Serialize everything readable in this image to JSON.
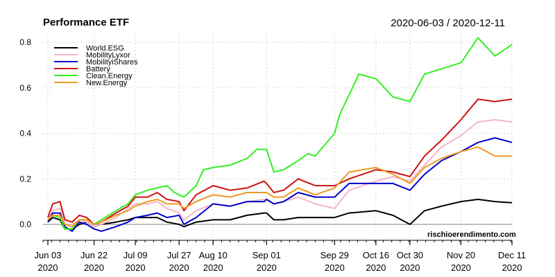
{
  "header": {
    "title": "Performance ETF",
    "date_range": "2020-06-03 / 2020-12-11",
    "watermark": "rischioerendimento.com"
  },
  "chart_data": {
    "type": "line",
    "ylim": [
      -0.07,
      0.84
    ],
    "y_ticks": [
      "0.0",
      "0.2",
      "0.4",
      "0.6",
      "0.8"
    ],
    "y_tick_values": [
      0.0,
      0.2,
      0.4,
      0.6,
      0.8
    ],
    "x_range": [
      "2020-06-01",
      "2020-12-11"
    ],
    "x_ticks": [
      {
        "date": "2020-06-03",
        "label1": "Jun 03",
        "label2": "2020"
      },
      {
        "date": "2020-06-22",
        "label1": "Jun 22",
        "label2": "2020"
      },
      {
        "date": "2020-07-09",
        "label1": "Jul 09",
        "label2": "2020"
      },
      {
        "date": "2020-07-27",
        "label1": "Jul 27",
        "label2": "2020"
      },
      {
        "date": "2020-08-10",
        "label1": "Aug 10",
        "label2": "2020"
      },
      {
        "date": "2020-09-01",
        "label1": "Sep 01",
        "label2": "2020"
      },
      {
        "date": "2020-09-29",
        "label1": "Sep 29",
        "label2": "2020"
      },
      {
        "date": "2020-10-16",
        "label1": "Oct 16",
        "label2": "2020"
      },
      {
        "date": "2020-10-30",
        "label1": "Oct 30",
        "label2": "2020"
      },
      {
        "date": "2020-11-20",
        "label1": "Nov 20",
        "label2": "2020"
      },
      {
        "date": "2020-12-11",
        "label1": "Dec 11",
        "label2": "2020"
      }
    ],
    "grid": true,
    "legend_position": "top-left",
    "series": [
      {
        "name": "World.ESG",
        "color": "#000000",
        "points": [
          [
            "2020-06-03",
            0.01
          ],
          [
            "2020-06-05",
            0.03
          ],
          [
            "2020-06-08",
            0.02
          ],
          [
            "2020-06-10",
            -0.02
          ],
          [
            "2020-06-13",
            -0.02
          ],
          [
            "2020-06-16",
            0.0
          ],
          [
            "2020-06-19",
            0.01
          ],
          [
            "2020-06-22",
            -0.01
          ],
          [
            "2020-06-25",
            0.0
          ],
          [
            "2020-07-01",
            0.01
          ],
          [
            "2020-07-06",
            0.02
          ],
          [
            "2020-07-09",
            0.03
          ],
          [
            "2020-07-14",
            0.03
          ],
          [
            "2020-07-18",
            0.03
          ],
          [
            "2020-07-22",
            0.01
          ],
          [
            "2020-07-27",
            0.0
          ],
          [
            "2020-07-29",
            -0.01
          ],
          [
            "2020-08-03",
            0.01
          ],
          [
            "2020-08-10",
            0.02
          ],
          [
            "2020-08-17",
            0.02
          ],
          [
            "2020-08-24",
            0.04
          ],
          [
            "2020-08-31",
            0.05
          ],
          [
            "2020-09-01",
            0.05
          ],
          [
            "2020-09-04",
            0.02
          ],
          [
            "2020-09-08",
            0.02
          ],
          [
            "2020-09-14",
            0.03
          ],
          [
            "2020-09-21",
            0.03
          ],
          [
            "2020-09-29",
            0.03
          ],
          [
            "2020-10-05",
            0.05
          ],
          [
            "2020-10-16",
            0.06
          ],
          [
            "2020-10-23",
            0.04
          ],
          [
            "2020-10-30",
            0.0
          ],
          [
            "2020-11-05",
            0.06
          ],
          [
            "2020-11-12",
            0.08
          ],
          [
            "2020-11-20",
            0.1
          ],
          [
            "2020-11-27",
            0.11
          ],
          [
            "2020-12-04",
            0.1
          ],
          [
            "2020-12-11",
            0.095
          ]
        ]
      },
      {
        "name": "MobilityLyxor",
        "color": "#f4b6c8",
        "points": [
          [
            "2020-06-03",
            0.02
          ],
          [
            "2020-06-05",
            0.06
          ],
          [
            "2020-06-08",
            0.07
          ],
          [
            "2020-06-10",
            0.0
          ],
          [
            "2020-06-13",
            0.0
          ],
          [
            "2020-06-16",
            0.02
          ],
          [
            "2020-06-19",
            0.01
          ],
          [
            "2020-06-22",
            -0.01
          ],
          [
            "2020-06-25",
            0.0
          ],
          [
            "2020-07-01",
            0.03
          ],
          [
            "2020-07-06",
            0.07
          ],
          [
            "2020-07-09",
            0.09
          ],
          [
            "2020-07-14",
            0.09
          ],
          [
            "2020-07-18",
            0.1
          ],
          [
            "2020-07-22",
            0.07
          ],
          [
            "2020-07-27",
            0.05
          ],
          [
            "2020-07-29",
            0.02
          ],
          [
            "2020-08-03",
            0.06
          ],
          [
            "2020-08-10",
            0.09
          ],
          [
            "2020-08-17",
            0.08
          ],
          [
            "2020-08-24",
            0.1
          ],
          [
            "2020-08-31",
            0.11
          ],
          [
            "2020-09-01",
            0.11
          ],
          [
            "2020-09-04",
            0.09
          ],
          [
            "2020-09-08",
            0.1
          ],
          [
            "2020-09-14",
            0.12
          ],
          [
            "2020-09-21",
            0.09
          ],
          [
            "2020-09-29",
            0.07
          ],
          [
            "2020-10-05",
            0.15
          ],
          [
            "2020-10-16",
            0.19
          ],
          [
            "2020-10-23",
            0.21
          ],
          [
            "2020-10-30",
            0.19
          ],
          [
            "2020-11-05",
            0.26
          ],
          [
            "2020-11-12",
            0.34
          ],
          [
            "2020-11-20",
            0.39
          ],
          [
            "2020-11-27",
            0.45
          ],
          [
            "2020-12-04",
            0.46
          ],
          [
            "2020-12-11",
            0.45
          ]
        ]
      },
      {
        "name": "MobilityiShares",
        "color": "#0000cc",
        "points": [
          [
            "2020-06-03",
            0.01
          ],
          [
            "2020-06-05",
            0.05
          ],
          [
            "2020-06-08",
            0.05
          ],
          [
            "2020-06-10",
            -0.01
          ],
          [
            "2020-06-13",
            -0.03
          ],
          [
            "2020-06-16",
            0.01
          ],
          [
            "2020-06-19",
            0.0
          ],
          [
            "2020-06-22",
            -0.02
          ],
          [
            "2020-06-25",
            -0.03
          ],
          [
            "2020-07-01",
            -0.01
          ],
          [
            "2020-07-06",
            0.01
          ],
          [
            "2020-07-09",
            0.03
          ],
          [
            "2020-07-14",
            0.04
          ],
          [
            "2020-07-18",
            0.05
          ],
          [
            "2020-07-22",
            0.03
          ],
          [
            "2020-07-27",
            0.04
          ],
          [
            "2020-07-29",
            0.0
          ],
          [
            "2020-08-03",
            0.03
          ],
          [
            "2020-08-10",
            0.09
          ],
          [
            "2020-08-17",
            0.08
          ],
          [
            "2020-08-24",
            0.1
          ],
          [
            "2020-08-31",
            0.1
          ],
          [
            "2020-09-01",
            0.11
          ],
          [
            "2020-09-04",
            0.09
          ],
          [
            "2020-09-08",
            0.1
          ],
          [
            "2020-09-14",
            0.14
          ],
          [
            "2020-09-21",
            0.12
          ],
          [
            "2020-09-29",
            0.12
          ],
          [
            "2020-10-05",
            0.18
          ],
          [
            "2020-10-16",
            0.18
          ],
          [
            "2020-10-23",
            0.18
          ],
          [
            "2020-10-30",
            0.15
          ],
          [
            "2020-11-05",
            0.22
          ],
          [
            "2020-11-12",
            0.28
          ],
          [
            "2020-11-20",
            0.32
          ],
          [
            "2020-11-27",
            0.36
          ],
          [
            "2020-12-04",
            0.38
          ],
          [
            "2020-12-11",
            0.36
          ]
        ]
      },
      {
        "name": "Battery",
        "color": "#cc1111",
        "points": [
          [
            "2020-06-03",
            0.03
          ],
          [
            "2020-06-05",
            0.09
          ],
          [
            "2020-06-08",
            0.1
          ],
          [
            "2020-06-10",
            0.02
          ],
          [
            "2020-06-13",
            0.01
          ],
          [
            "2020-06-16",
            0.04
          ],
          [
            "2020-06-19",
            0.03
          ],
          [
            "2020-06-22",
            0.0
          ],
          [
            "2020-06-25",
            0.01
          ],
          [
            "2020-07-01",
            0.05
          ],
          [
            "2020-07-06",
            0.08
          ],
          [
            "2020-07-09",
            0.12
          ],
          [
            "2020-07-14",
            0.12
          ],
          [
            "2020-07-18",
            0.14
          ],
          [
            "2020-07-22",
            0.11
          ],
          [
            "2020-07-27",
            0.1
          ],
          [
            "2020-07-29",
            0.06
          ],
          [
            "2020-08-03",
            0.13
          ],
          [
            "2020-08-10",
            0.17
          ],
          [
            "2020-08-17",
            0.15
          ],
          [
            "2020-08-24",
            0.16
          ],
          [
            "2020-08-31",
            0.19
          ],
          [
            "2020-09-01",
            0.18
          ],
          [
            "2020-09-04",
            0.14
          ],
          [
            "2020-09-08",
            0.15
          ],
          [
            "2020-09-14",
            0.2
          ],
          [
            "2020-09-21",
            0.17
          ],
          [
            "2020-09-29",
            0.17
          ],
          [
            "2020-10-05",
            0.2
          ],
          [
            "2020-10-16",
            0.24
          ],
          [
            "2020-10-23",
            0.23
          ],
          [
            "2020-10-30",
            0.21
          ],
          [
            "2020-11-05",
            0.3
          ],
          [
            "2020-11-12",
            0.37
          ],
          [
            "2020-11-20",
            0.46
          ],
          [
            "2020-11-27",
            0.55
          ],
          [
            "2020-12-04",
            0.54
          ],
          [
            "2020-12-11",
            0.55
          ]
        ]
      },
      {
        "name": "Clean.Energy",
        "color": "#33ee22",
        "points": [
          [
            "2020-06-03",
            0.02
          ],
          [
            "2020-06-05",
            0.04
          ],
          [
            "2020-06-08",
            0.03
          ],
          [
            "2020-06-10",
            -0.02
          ],
          [
            "2020-06-13",
            -0.02
          ],
          [
            "2020-06-16",
            0.02
          ],
          [
            "2020-06-19",
            0.02
          ],
          [
            "2020-06-22",
            0.0
          ],
          [
            "2020-06-25",
            0.02
          ],
          [
            "2020-07-01",
            0.06
          ],
          [
            "2020-07-06",
            0.09
          ],
          [
            "2020-07-09",
            0.13
          ],
          [
            "2020-07-14",
            0.15
          ],
          [
            "2020-07-18",
            0.16
          ],
          [
            "2020-07-22",
            0.17
          ],
          [
            "2020-07-25",
            0.14
          ],
          [
            "2020-07-29",
            0.12
          ],
          [
            "2020-08-03",
            0.17
          ],
          [
            "2020-08-06",
            0.24
          ],
          [
            "2020-08-10",
            0.25
          ],
          [
            "2020-08-17",
            0.26
          ],
          [
            "2020-08-24",
            0.29
          ],
          [
            "2020-08-28",
            0.33
          ],
          [
            "2020-09-01",
            0.33
          ],
          [
            "2020-09-04",
            0.23
          ],
          [
            "2020-09-08",
            0.24
          ],
          [
            "2020-09-14",
            0.28
          ],
          [
            "2020-09-18",
            0.31
          ],
          [
            "2020-09-21",
            0.3
          ],
          [
            "2020-09-29",
            0.4
          ],
          [
            "2020-10-01",
            0.48
          ],
          [
            "2020-10-09",
            0.66
          ],
          [
            "2020-10-16",
            0.64
          ],
          [
            "2020-10-23",
            0.56
          ],
          [
            "2020-10-30",
            0.54
          ],
          [
            "2020-11-05",
            0.66
          ],
          [
            "2020-11-20",
            0.71
          ],
          [
            "2020-11-27",
            0.82
          ],
          [
            "2020-12-04",
            0.74
          ],
          [
            "2020-12-11",
            0.79
          ]
        ]
      },
      {
        "name": "New.Energy",
        "color": "#ee9922",
        "points": [
          [
            "2020-06-03",
            0.02
          ],
          [
            "2020-06-05",
            0.04
          ],
          [
            "2020-06-08",
            0.04
          ],
          [
            "2020-06-10",
            0.0
          ],
          [
            "2020-06-13",
            -0.01
          ],
          [
            "2020-06-16",
            0.02
          ],
          [
            "2020-06-19",
            0.02
          ],
          [
            "2020-06-22",
            0.0
          ],
          [
            "2020-06-25",
            0.01
          ],
          [
            "2020-07-01",
            0.04
          ],
          [
            "2020-07-06",
            0.06
          ],
          [
            "2020-07-09",
            0.08
          ],
          [
            "2020-07-14",
            0.1
          ],
          [
            "2020-07-18",
            0.11
          ],
          [
            "2020-07-22",
            0.09
          ],
          [
            "2020-07-27",
            0.09
          ],
          [
            "2020-07-29",
            0.07
          ],
          [
            "2020-08-03",
            0.1
          ],
          [
            "2020-08-10",
            0.13
          ],
          [
            "2020-08-17",
            0.12
          ],
          [
            "2020-08-24",
            0.14
          ],
          [
            "2020-08-31",
            0.14
          ],
          [
            "2020-09-01",
            0.14
          ],
          [
            "2020-09-04",
            0.12
          ],
          [
            "2020-09-08",
            0.12
          ],
          [
            "2020-09-14",
            0.16
          ],
          [
            "2020-09-21",
            0.13
          ],
          [
            "2020-09-29",
            0.16
          ],
          [
            "2020-10-05",
            0.23
          ],
          [
            "2020-10-16",
            0.25
          ],
          [
            "2020-10-23",
            0.22
          ],
          [
            "2020-10-30",
            0.18
          ],
          [
            "2020-11-05",
            0.25
          ],
          [
            "2020-11-12",
            0.29
          ],
          [
            "2020-11-20",
            0.32
          ],
          [
            "2020-11-27",
            0.34
          ],
          [
            "2020-12-04",
            0.3
          ],
          [
            "2020-12-11",
            0.3
          ]
        ]
      }
    ]
  }
}
